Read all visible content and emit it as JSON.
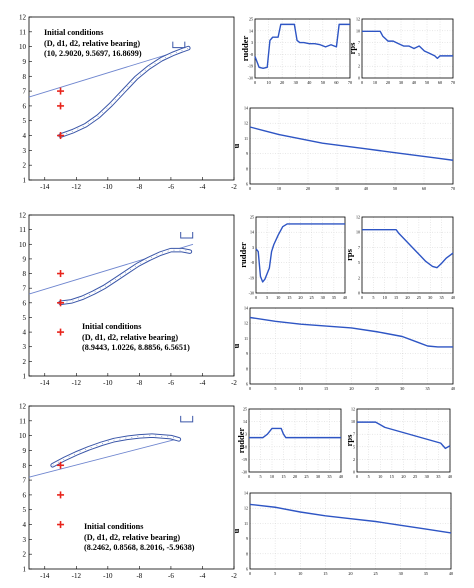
{
  "colors": {
    "trajectory": "#3a56a8",
    "path_line": "#6f86cf",
    "series_line": "#2e55c4",
    "grid": "#d2d2d2",
    "axis": "#000000",
    "marker": "#e8241c"
  },
  "icons": {
    "obstacle_marker": "plus-icon",
    "target_bracket": "bracket-icon"
  },
  "trajectory_axes": {
    "xticks": [
      "-14",
      "-12",
      "-10",
      "-8",
      "-6",
      "-4",
      "-2"
    ],
    "yticks": [
      "1",
      "2",
      "3",
      "4",
      "5",
      "6",
      "7",
      "8",
      "9",
      "10",
      "11",
      "12"
    ]
  },
  "panels": [
    {
      "annotation": {
        "line1": "Initial conditions",
        "line2": "(D, d1, d2, relative bearing)",
        "line3": "(10, 2.9020, 9.5697, 16.8699)"
      },
      "rudder_ylabel": "rudder",
      "rps_ylabel": "rps",
      "u_ylabel": "u"
    },
    {
      "annotation": {
        "line1": "Initial conditions",
        "line2": "(D, d1, d2, relative bearing)",
        "line3": "(8.9443, 1.0226, 8.8856, 6.5651)"
      },
      "rudder_ylabel": "rudder",
      "rps_ylabel": "rps",
      "u_ylabel": "u"
    },
    {
      "annotation": {
        "line1": "Initial conditions",
        "line2": "(D, d1, d2, relative bearing)",
        "line3": "(8.2462, 0.8568, 8.2016, -5.9638)"
      },
      "rudder_ylabel": "rudder",
      "rps_ylabel": "rps",
      "u_ylabel": "u"
    }
  ],
  "chart_data": [
    {
      "type": "line",
      "title": "",
      "xlabel": "",
      "ylabel": "",
      "xlim": [
        -15,
        -2
      ],
      "ylim": [
        1,
        12
      ],
      "grid": false,
      "markers": [
        {
          "x": -13,
          "y": 7
        },
        {
          "x": -13,
          "y": 6
        },
        {
          "x": -13,
          "y": 4
        }
      ],
      "target": {
        "x": -5.5,
        "y": 10
      },
      "series": [
        {
          "x": [
            -13,
            -12.2,
            -11.4,
            -10.6,
            -9.8,
            -9.0,
            -8.2,
            -7.4,
            -6.6,
            -5.9,
            -5.3,
            -4.9
          ],
          "y": [
            4.0,
            4.3,
            4.7,
            5.3,
            6.1,
            7.0,
            7.9,
            8.6,
            9.15,
            9.5,
            9.75,
            9.9
          ]
        },
        {
          "x": [
            -15,
            -4.9
          ],
          "y": [
            6.6,
            9.9
          ]
        }
      ]
    },
    {
      "type": "line",
      "title": "",
      "xlabel": "",
      "ylabel": "",
      "xlim": [
        -15,
        -2
      ],
      "ylim": [
        1,
        12
      ],
      "grid": false,
      "markers": [
        {
          "x": -13,
          "y": 8
        },
        {
          "x": -13,
          "y": 6
        },
        {
          "x": -13,
          "y": 4
        }
      ],
      "target": {
        "x": -5.0,
        "y": 10.5
      },
      "series": [
        {
          "x": [
            -13,
            -12.3,
            -11.6,
            -10.9,
            -10.2,
            -9.5,
            -8.8,
            -8.1,
            -7.4,
            -6.7,
            -6.0,
            -5.3,
            -4.8
          ],
          "y": [
            6.0,
            6.1,
            6.35,
            6.7,
            7.1,
            7.6,
            8.1,
            8.6,
            9.0,
            9.35,
            9.6,
            9.6,
            9.5
          ]
        },
        {
          "x": [
            -15,
            -4.6
          ],
          "y": [
            6.6,
            10.0
          ]
        }
      ]
    },
    {
      "type": "line",
      "title": "",
      "xlabel": "",
      "ylabel": "",
      "xlim": [
        -15,
        -2
      ],
      "ylim": [
        1,
        12
      ],
      "grid": false,
      "markers": [
        {
          "x": -13,
          "y": 8
        },
        {
          "x": -13,
          "y": 6
        },
        {
          "x": -13,
          "y": 4
        }
      ],
      "target": {
        "x": -5.0,
        "y": 11.0
      },
      "series": [
        {
          "x": [
            -13.5,
            -12.8,
            -12.0,
            -11.2,
            -10.4,
            -9.6,
            -8.8,
            -8.0,
            -7.2,
            -6.6,
            -6.0,
            -5.5
          ],
          "y": [
            8.0,
            8.4,
            8.8,
            9.15,
            9.45,
            9.7,
            9.85,
            9.95,
            10.0,
            9.95,
            9.9,
            9.75
          ]
        },
        {
          "x": [
            -15,
            -5.5
          ],
          "y": [
            7.2,
            9.8
          ]
        }
      ]
    },
    {
      "type": "line",
      "title": "",
      "xlabel": "",
      "ylabel": "rudder",
      "xlim": [
        0,
        70
      ],
      "ylim": [
        -30,
        25
      ],
      "grid": true,
      "xticks": [
        0,
        10,
        20,
        30,
        40,
        50,
        60,
        70
      ],
      "series": [
        {
          "x": [
            0,
            3,
            6,
            9,
            11,
            13,
            15,
            17,
            19,
            21,
            23,
            25,
            27,
            29,
            31,
            33,
            36,
            40,
            44,
            48,
            52,
            56,
            60,
            62,
            64,
            66,
            70
          ],
          "y": [
            -10,
            -20,
            -21,
            -20,
            5,
            8,
            8,
            8,
            20,
            20,
            20,
            20,
            20,
            20,
            5,
            3,
            3,
            2,
            2,
            1,
            -1,
            1,
            -1,
            20,
            20,
            20,
            20
          ]
        }
      ]
    },
    {
      "type": "line",
      "title": "",
      "xlabel": "",
      "ylabel": "rps",
      "xlim": [
        0,
        70
      ],
      "ylim": [
        0,
        12
      ],
      "grid": true,
      "xticks": [
        0,
        10,
        20,
        30,
        40,
        50,
        60,
        70
      ],
      "series": [
        {
          "x": [
            0,
            5,
            10,
            14,
            16,
            18,
            20,
            24,
            28,
            32,
            36,
            40,
            44,
            48,
            52,
            56,
            58,
            60,
            62,
            64,
            68,
            70
          ],
          "y": [
            9.5,
            9.5,
            9.5,
            9.5,
            8.5,
            8.0,
            7.5,
            7.5,
            7.0,
            6.5,
            6.5,
            6.0,
            6.5,
            5.5,
            5.0,
            4.5,
            4.0,
            4.5,
            4.5,
            4.5,
            4.5,
            4.5
          ]
        }
      ]
    },
    {
      "type": "line",
      "title": "",
      "xlabel": "",
      "ylabel": "u",
      "xlim": [
        0,
        70
      ],
      "ylim": [
        6,
        14
      ],
      "grid": true,
      "xticks": [
        0,
        10,
        20,
        30,
        40,
        50,
        60,
        70
      ],
      "series": [
        {
          "x": [
            0,
            5,
            10,
            15,
            20,
            25,
            30,
            35,
            40,
            45,
            50,
            55,
            60,
            65,
            70
          ],
          "y": [
            12.0,
            11.6,
            11.2,
            10.9,
            10.6,
            10.3,
            10.1,
            9.9,
            9.7,
            9.5,
            9.3,
            9.1,
            8.9,
            8.7,
            8.5
          ]
        }
      ]
    },
    {
      "type": "line",
      "title": "",
      "xlabel": "",
      "ylabel": "rudder",
      "xlim": [
        0,
        40
      ],
      "ylim": [
        -30,
        25
      ],
      "grid": true,
      "xticks": [
        0,
        5,
        10,
        15,
        20,
        25,
        30,
        35,
        40
      ],
      "series": [
        {
          "x": [
            0,
            1,
            2,
            3,
            4,
            5,
            6,
            7,
            8,
            10,
            12,
            14,
            16,
            20,
            25,
            30,
            35,
            40
          ],
          "y": [
            2,
            0,
            -18,
            -22,
            -20,
            -16,
            -12,
            0,
            5,
            12,
            18,
            20,
            20,
            20,
            20,
            20,
            20,
            20
          ]
        }
      ]
    },
    {
      "type": "line",
      "title": "",
      "xlabel": "",
      "ylabel": "rps",
      "xlim": [
        0,
        40
      ],
      "ylim": [
        0,
        12
      ],
      "grid": true,
      "xticks": [
        0,
        5,
        10,
        15,
        20,
        25,
        30,
        35,
        40
      ],
      "series": [
        {
          "x": [
            0,
            5,
            10,
            15,
            16,
            20,
            24,
            28,
            31,
            33,
            35,
            37,
            40
          ],
          "y": [
            10,
            10,
            10,
            10,
            9.5,
            8,
            6.5,
            5,
            4.2,
            4,
            4.7,
            5.5,
            6.3
          ]
        }
      ]
    },
    {
      "type": "line",
      "title": "",
      "xlabel": "",
      "ylabel": "u",
      "xlim": [
        0,
        40
      ],
      "ylim": [
        6,
        14
      ],
      "grid": true,
      "xticks": [
        0,
        5,
        10,
        15,
        20,
        25,
        30,
        35,
        40
      ],
      "series": [
        {
          "x": [
            0,
            5,
            10,
            15,
            20,
            25,
            30,
            33,
            35,
            37,
            40
          ],
          "y": [
            13.0,
            12.6,
            12.3,
            12.1,
            11.9,
            11.5,
            11.0,
            10.4,
            10.0,
            9.9,
            9.9
          ]
        }
      ]
    },
    {
      "type": "line",
      "title": "",
      "xlabel": "",
      "ylabel": "rudder",
      "xlim": [
        0,
        40
      ],
      "ylim": [
        -30,
        25
      ],
      "grid": true,
      "xticks": [
        0,
        5,
        10,
        15,
        20,
        25,
        30,
        35,
        40
      ],
      "series": [
        {
          "x": [
            0,
            4,
            6,
            8,
            10,
            12,
            14,
            15,
            16,
            20,
            25,
            30,
            35,
            40
          ],
          "y": [
            0,
            0,
            0,
            3,
            8,
            8,
            8,
            3,
            0,
            0,
            0,
            0,
            0,
            0
          ]
        }
      ]
    },
    {
      "type": "line",
      "title": "",
      "xlabel": "",
      "ylabel": "rps",
      "xlim": [
        0,
        40
      ],
      "ylim": [
        0,
        12
      ],
      "grid": true,
      "xticks": [
        0,
        5,
        10,
        15,
        20,
        25,
        30,
        35,
        40
      ],
      "series": [
        {
          "x": [
            0,
            5,
            8,
            12,
            16,
            20,
            24,
            28,
            32,
            36,
            38,
            40
          ],
          "y": [
            9.5,
            9.5,
            9.5,
            8.5,
            8.0,
            7.5,
            7.0,
            6.5,
            6.0,
            5.5,
            4.5,
            5.0
          ]
        }
      ]
    },
    {
      "type": "line",
      "title": "",
      "xlabel": "",
      "ylabel": "u",
      "xlim": [
        0,
        40
      ],
      "ylim": [
        6,
        14
      ],
      "grid": true,
      "xticks": [
        0,
        5,
        10,
        15,
        20,
        25,
        30,
        35,
        40
      ],
      "series": [
        {
          "x": [
            0,
            5,
            10,
            15,
            20,
            25,
            30,
            35,
            40
          ],
          "y": [
            12.8,
            12.5,
            12.0,
            11.6,
            11.3,
            11.0,
            10.6,
            10.2,
            9.8
          ]
        }
      ]
    }
  ]
}
